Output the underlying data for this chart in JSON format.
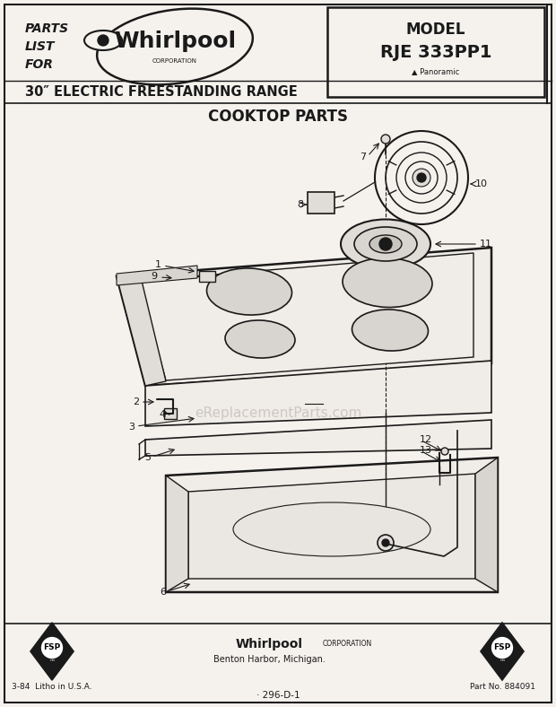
{
  "bg_color": "#f5f2ee",
  "line_color": "#1a1a1a",
  "text_color": "#1a1a1a",
  "part_fill": "#f0ece7",
  "burner_fill": "#e0dcd7",
  "header_bg": "#f5f2ee",
  "range_title": "30\" ELECTRIC FREESTANDING RANGE",
  "model_label": "MODEL",
  "model_number": "RJE 333PP1",
  "panoramic_text": "▲ Panoramic",
  "cooktop_title": "COOKTOP PARTS",
  "watermark": "eReplacementParts.com",
  "footer_whirlpool": "Whirlpool",
  "footer_corp": "CORPORATION",
  "footer_address": "Benton Harbor, Michigan.",
  "footer_left": "3-84  Litho in U.S.A.",
  "footer_right": "Part No. 884091",
  "footer_num": "· 296-D-1"
}
